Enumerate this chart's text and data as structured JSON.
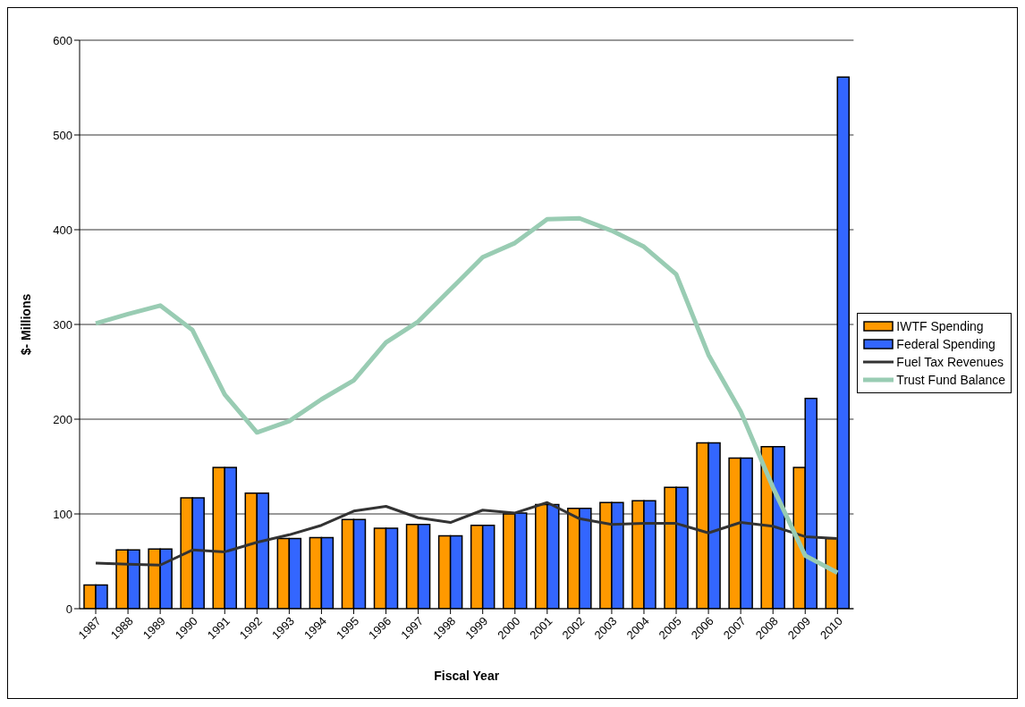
{
  "chart_data": {
    "type": "bar",
    "xlabel": "Fiscal Year",
    "ylabel": "$- Millions",
    "categories": [
      "1987",
      "1988",
      "1989",
      "1990",
      "1991",
      "1992",
      "1993",
      "1994",
      "1995",
      "1996",
      "1997",
      "1998",
      "1999",
      "2000",
      "2001",
      "2002",
      "2003",
      "2004",
      "2005",
      "2006",
      "2007",
      "2008",
      "2009",
      "2010"
    ],
    "series": [
      {
        "name": "IWTF Spending",
        "color": "#ff9900",
        "values": [
          25,
          62,
          63,
          117,
          149,
          122,
          74,
          75,
          94,
          85,
          89,
          77,
          88,
          100,
          110,
          106,
          112,
          114,
          128,
          175,
          159,
          171,
          149,
          74
        ]
      },
      {
        "name": "Federal Spending",
        "color": "#3366ff",
        "values": [
          25,
          62,
          63,
          117,
          149,
          122,
          74,
          75,
          94,
          85,
          89,
          77,
          88,
          101,
          110,
          106,
          112,
          114,
          128,
          175,
          159,
          171,
          222,
          561
        ]
      },
      {
        "name": "Fuel Tax Revenues",
        "type": "line",
        "color": "#333333",
        "values": [
          48,
          47,
          46,
          62,
          60,
          70,
          78,
          88,
          103,
          108,
          96,
          91,
          104,
          101,
          112,
          95,
          89,
          90,
          90,
          80,
          91,
          87,
          76,
          74
        ]
      },
      {
        "name": "Trust Fund Balance",
        "type": "line",
        "color": "#99ccb3",
        "values": [
          301,
          311,
          320,
          294,
          226,
          186,
          198,
          221,
          241,
          281,
          303,
          337,
          371,
          386,
          411,
          412,
          399,
          382,
          353,
          268,
          208,
          128,
          56,
          38
        ]
      }
    ],
    "ylim": [
      0,
      600
    ],
    "yticks": [
      0,
      100,
      200,
      300,
      400,
      500,
      600
    ],
    "grid": "y",
    "legend": "right",
    "marker": "none",
    "line_style": "solid"
  }
}
